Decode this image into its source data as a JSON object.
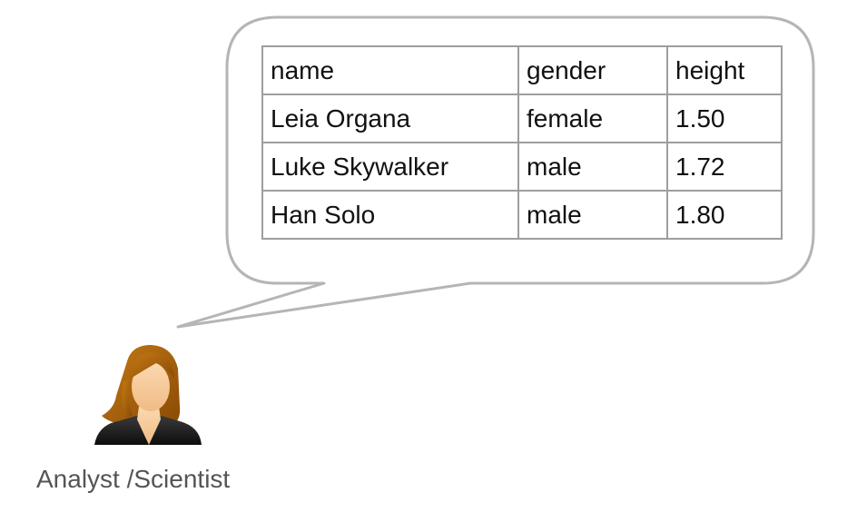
{
  "table": {
    "headers": [
      "name",
      "gender",
      "height"
    ],
    "rows": [
      [
        "Leia Organa",
        "female",
        "1.50"
      ],
      [
        "Luke Skywalker",
        "male",
        "1.72"
      ],
      [
        "Han Solo",
        "male",
        "1.80"
      ]
    ]
  },
  "person": {
    "icon": "female-user-icon",
    "label": "Analyst /Scientist"
  },
  "colors": {
    "bubble_stroke": "#b5b5b5",
    "table_border": "#9e9e9e",
    "text": "#111111",
    "caption": "#555555",
    "hair": "#a65e08",
    "skin": "#f6ca98",
    "clothing": "#1a1a1a"
  }
}
